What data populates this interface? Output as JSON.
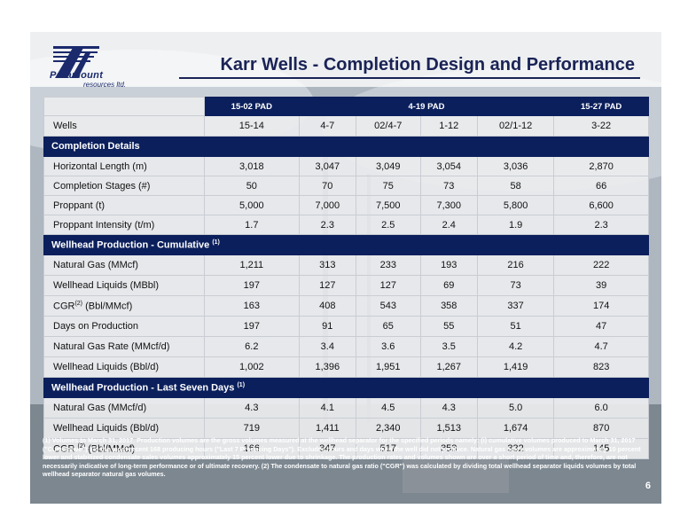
{
  "header": {
    "title": "Karr Wells - Completion Design and Performance",
    "logo_name": "Paramount",
    "logo_sub": "resources ltd."
  },
  "table": {
    "pads": [
      {
        "label": "15-02 PAD",
        "span": 1
      },
      {
        "label": "4-19 PAD",
        "span": 4
      },
      {
        "label": "15-27 PAD",
        "span": 1
      }
    ],
    "wells_label": "Wells",
    "wells": [
      "15-14",
      "4-7",
      "02/4-7",
      "1-12",
      "02/1-12",
      "3-22"
    ],
    "sections": [
      {
        "title": "Completion Details",
        "title_sup": "",
        "rows": [
          {
            "label": "Horizontal Length (m)",
            "sup": "",
            "label_tail": "",
            "values": [
              "3,018",
              "3,047",
              "3,049",
              "3,054",
              "3,036",
              "2,870"
            ]
          },
          {
            "label": "Completion Stages (#)",
            "sup": "",
            "label_tail": "",
            "values": [
              "50",
              "70",
              "75",
              "73",
              "58",
              "66"
            ]
          },
          {
            "label": "Proppant (t)",
            "sup": "",
            "label_tail": "",
            "values": [
              "5,000",
              "7,000",
              "7,500",
              "7,300",
              "5,800",
              "6,600"
            ]
          },
          {
            "label": "Proppant Intensity (t/m)",
            "sup": "",
            "label_tail": "",
            "values": [
              "1.7",
              "2.3",
              "2.5",
              "2.4",
              "1.9",
              "2.3"
            ]
          }
        ]
      },
      {
        "title": "Wellhead Production - Cumulative",
        "title_sup": "(1)",
        "rows": [
          {
            "label": "Natural Gas (MMcf)",
            "sup": "",
            "label_tail": "",
            "values": [
              "1,211",
              "313",
              "233",
              "193",
              "216",
              "222"
            ]
          },
          {
            "label": "Wellhead Liquids (MBbl)",
            "sup": "",
            "label_tail": "",
            "values": [
              "197",
              "127",
              "127",
              "69",
              "73",
              "39"
            ]
          },
          {
            "label": "CGR",
            "sup": "(2)",
            "label_tail": " (Bbl/MMcf)",
            "values": [
              "163",
              "408",
              "543",
              "358",
              "337",
              "174"
            ]
          },
          {
            "label": "Days on Production",
            "sup": "",
            "label_tail": "",
            "values": [
              "197",
              "91",
              "65",
              "55",
              "51",
              "47"
            ]
          },
          {
            "label": "Natural Gas Rate (MMcf/d)",
            "sup": "",
            "label_tail": "",
            "values": [
              "6.2",
              "3.4",
              "3.6",
              "3.5",
              "4.2",
              "4.7"
            ]
          },
          {
            "label": "Wellhead Liquids (Bbl/d)",
            "sup": "",
            "label_tail": "",
            "values": [
              "1,002",
              "1,396",
              "1,951",
              "1,267",
              "1,419",
              "823"
            ]
          }
        ]
      },
      {
        "title": "Wellhead Production - Last Seven Days",
        "title_sup": "(1)",
        "rows": [
          {
            "label": "Natural Gas (MMcf/d)",
            "sup": "",
            "label_tail": "",
            "values": [
              "4.3",
              "4.1",
              "4.5",
              "4.3",
              "5.0",
              "6.0"
            ]
          },
          {
            "label": "Wellhead Liquids (Bbl/d)",
            "sup": "",
            "label_tail": "",
            "values": [
              "719",
              "1,411",
              "2,340",
              "1,513",
              "1,674",
              "870"
            ]
          },
          {
            "label": "CGR ",
            "sup": "(2)",
            "label_tail": " (Bbl/MMcf)",
            "values": [
              "166",
              "347",
              "517",
              "353",
              "332",
              "145"
            ]
          }
        ]
      }
    ]
  },
  "footnote": "(1) Volumes to March 31, 2017. Production volumes are the gross volumes measured at the wellhead separator for the specified periods namely: (i) cumulative volumes produced to March 31, 2017 (\"Cumulative\"); (ii) the most recent 168 producing hours (\"Last 7 Producing Days\"). Excludes hours and days when the well did not produce. Natural gas sales volumes are approximately 10 percent lower and stabilized condensate sales volumes approximately 15 percent lower due to shrinkage. The production rates and volumes shown are over a short period of time and, therefore, are not necessarily indicative of long-term performance or of ultimate recovery. (2) The condensate to natural gas ratio (\"CGR\") was calculated by dividing total wellhead separator liquids volumes by total wellhead separator natural gas volumes.",
  "page_number": "6",
  "colors": {
    "navy": "#0b1f5c",
    "title": "#1a2355"
  }
}
